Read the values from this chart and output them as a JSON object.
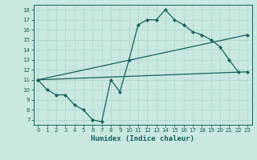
{
  "xlabel": "Humidex (Indice chaleur)",
  "ylabel": "",
  "xlim": [
    -0.5,
    23.5
  ],
  "ylim": [
    6.5,
    18.5
  ],
  "xticks": [
    0,
    1,
    2,
    3,
    4,
    5,
    6,
    7,
    8,
    9,
    10,
    11,
    12,
    13,
    14,
    15,
    16,
    17,
    18,
    19,
    20,
    21,
    22,
    23
  ],
  "yticks": [
    7,
    8,
    9,
    10,
    11,
    12,
    13,
    14,
    15,
    16,
    17,
    18
  ],
  "bg_color": "#c8e8e0",
  "grid_color": "#b0d8d0",
  "line_color": "#1a6060",
  "lines": [
    {
      "x": [
        0,
        1,
        2,
        3,
        4,
        5,
        6,
        7,
        8,
        9,
        10,
        11,
        12,
        13,
        14,
        15,
        16,
        17,
        18,
        19,
        20,
        21,
        22
      ],
      "y": [
        11,
        10,
        9.5,
        9.5,
        8.5,
        8.0,
        7.0,
        6.8,
        11.0,
        9.8,
        13.0,
        16.5,
        17.0,
        17.0,
        18.0,
        17.0,
        16.5,
        15.8,
        15.5,
        15.0,
        14.3,
        13.0,
        11.8
      ]
    },
    {
      "x": [
        0,
        23
      ],
      "y": [
        11.0,
        11.8
      ]
    },
    {
      "x": [
        0,
        23
      ],
      "y": [
        11.0,
        15.5
      ]
    }
  ]
}
